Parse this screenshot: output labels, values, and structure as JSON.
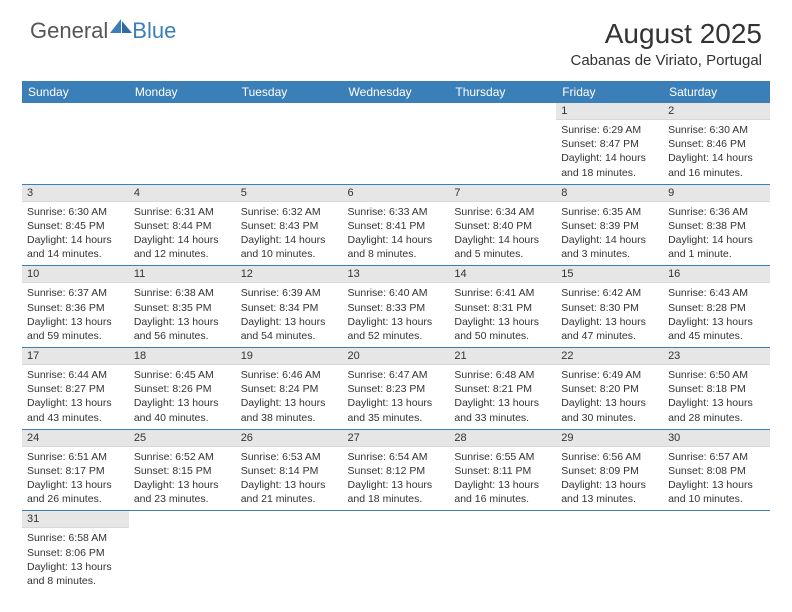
{
  "brand": {
    "part1": "General",
    "part2": "Blue"
  },
  "title": "August 2025",
  "location": "Cabanas de Viriato, Portugal",
  "colors": {
    "header_bg": "#3b7fb8",
    "header_text": "#ffffff",
    "daynum_bg": "#e6e6e6",
    "row_divider": "#3b7fb8",
    "body_text": "#333333"
  },
  "day_headers": [
    "Sunday",
    "Monday",
    "Tuesday",
    "Wednesday",
    "Thursday",
    "Friday",
    "Saturday"
  ],
  "weeks": [
    [
      {
        "empty": true
      },
      {
        "empty": true
      },
      {
        "empty": true
      },
      {
        "empty": true
      },
      {
        "empty": true
      },
      {
        "day": "1",
        "sunrise": "Sunrise: 6:29 AM",
        "sunset": "Sunset: 8:47 PM",
        "daylight": "Daylight: 14 hours and 18 minutes."
      },
      {
        "day": "2",
        "sunrise": "Sunrise: 6:30 AM",
        "sunset": "Sunset: 8:46 PM",
        "daylight": "Daylight: 14 hours and 16 minutes."
      }
    ],
    [
      {
        "day": "3",
        "sunrise": "Sunrise: 6:30 AM",
        "sunset": "Sunset: 8:45 PM",
        "daylight": "Daylight: 14 hours and 14 minutes."
      },
      {
        "day": "4",
        "sunrise": "Sunrise: 6:31 AM",
        "sunset": "Sunset: 8:44 PM",
        "daylight": "Daylight: 14 hours and 12 minutes."
      },
      {
        "day": "5",
        "sunrise": "Sunrise: 6:32 AM",
        "sunset": "Sunset: 8:43 PM",
        "daylight": "Daylight: 14 hours and 10 minutes."
      },
      {
        "day": "6",
        "sunrise": "Sunrise: 6:33 AM",
        "sunset": "Sunset: 8:41 PM",
        "daylight": "Daylight: 14 hours and 8 minutes."
      },
      {
        "day": "7",
        "sunrise": "Sunrise: 6:34 AM",
        "sunset": "Sunset: 8:40 PM",
        "daylight": "Daylight: 14 hours and 5 minutes."
      },
      {
        "day": "8",
        "sunrise": "Sunrise: 6:35 AM",
        "sunset": "Sunset: 8:39 PM",
        "daylight": "Daylight: 14 hours and 3 minutes."
      },
      {
        "day": "9",
        "sunrise": "Sunrise: 6:36 AM",
        "sunset": "Sunset: 8:38 PM",
        "daylight": "Daylight: 14 hours and 1 minute."
      }
    ],
    [
      {
        "day": "10",
        "sunrise": "Sunrise: 6:37 AM",
        "sunset": "Sunset: 8:36 PM",
        "daylight": "Daylight: 13 hours and 59 minutes."
      },
      {
        "day": "11",
        "sunrise": "Sunrise: 6:38 AM",
        "sunset": "Sunset: 8:35 PM",
        "daylight": "Daylight: 13 hours and 56 minutes."
      },
      {
        "day": "12",
        "sunrise": "Sunrise: 6:39 AM",
        "sunset": "Sunset: 8:34 PM",
        "daylight": "Daylight: 13 hours and 54 minutes."
      },
      {
        "day": "13",
        "sunrise": "Sunrise: 6:40 AM",
        "sunset": "Sunset: 8:33 PM",
        "daylight": "Daylight: 13 hours and 52 minutes."
      },
      {
        "day": "14",
        "sunrise": "Sunrise: 6:41 AM",
        "sunset": "Sunset: 8:31 PM",
        "daylight": "Daylight: 13 hours and 50 minutes."
      },
      {
        "day": "15",
        "sunrise": "Sunrise: 6:42 AM",
        "sunset": "Sunset: 8:30 PM",
        "daylight": "Daylight: 13 hours and 47 minutes."
      },
      {
        "day": "16",
        "sunrise": "Sunrise: 6:43 AM",
        "sunset": "Sunset: 8:28 PM",
        "daylight": "Daylight: 13 hours and 45 minutes."
      }
    ],
    [
      {
        "day": "17",
        "sunrise": "Sunrise: 6:44 AM",
        "sunset": "Sunset: 8:27 PM",
        "daylight": "Daylight: 13 hours and 43 minutes."
      },
      {
        "day": "18",
        "sunrise": "Sunrise: 6:45 AM",
        "sunset": "Sunset: 8:26 PM",
        "daylight": "Daylight: 13 hours and 40 minutes."
      },
      {
        "day": "19",
        "sunrise": "Sunrise: 6:46 AM",
        "sunset": "Sunset: 8:24 PM",
        "daylight": "Daylight: 13 hours and 38 minutes."
      },
      {
        "day": "20",
        "sunrise": "Sunrise: 6:47 AM",
        "sunset": "Sunset: 8:23 PM",
        "daylight": "Daylight: 13 hours and 35 minutes."
      },
      {
        "day": "21",
        "sunrise": "Sunrise: 6:48 AM",
        "sunset": "Sunset: 8:21 PM",
        "daylight": "Daylight: 13 hours and 33 minutes."
      },
      {
        "day": "22",
        "sunrise": "Sunrise: 6:49 AM",
        "sunset": "Sunset: 8:20 PM",
        "daylight": "Daylight: 13 hours and 30 minutes."
      },
      {
        "day": "23",
        "sunrise": "Sunrise: 6:50 AM",
        "sunset": "Sunset: 8:18 PM",
        "daylight": "Daylight: 13 hours and 28 minutes."
      }
    ],
    [
      {
        "day": "24",
        "sunrise": "Sunrise: 6:51 AM",
        "sunset": "Sunset: 8:17 PM",
        "daylight": "Daylight: 13 hours and 26 minutes."
      },
      {
        "day": "25",
        "sunrise": "Sunrise: 6:52 AM",
        "sunset": "Sunset: 8:15 PM",
        "daylight": "Daylight: 13 hours and 23 minutes."
      },
      {
        "day": "26",
        "sunrise": "Sunrise: 6:53 AM",
        "sunset": "Sunset: 8:14 PM",
        "daylight": "Daylight: 13 hours and 21 minutes."
      },
      {
        "day": "27",
        "sunrise": "Sunrise: 6:54 AM",
        "sunset": "Sunset: 8:12 PM",
        "daylight": "Daylight: 13 hours and 18 minutes."
      },
      {
        "day": "28",
        "sunrise": "Sunrise: 6:55 AM",
        "sunset": "Sunset: 8:11 PM",
        "daylight": "Daylight: 13 hours and 16 minutes."
      },
      {
        "day": "29",
        "sunrise": "Sunrise: 6:56 AM",
        "sunset": "Sunset: 8:09 PM",
        "daylight": "Daylight: 13 hours and 13 minutes."
      },
      {
        "day": "30",
        "sunrise": "Sunrise: 6:57 AM",
        "sunset": "Sunset: 8:08 PM",
        "daylight": "Daylight: 13 hours and 10 minutes."
      }
    ],
    [
      {
        "day": "31",
        "sunrise": "Sunrise: 6:58 AM",
        "sunset": "Sunset: 8:06 PM",
        "daylight": "Daylight: 13 hours and 8 minutes."
      },
      {
        "empty": true
      },
      {
        "empty": true
      },
      {
        "empty": true
      },
      {
        "empty": true
      },
      {
        "empty": true
      },
      {
        "empty": true
      }
    ]
  ]
}
